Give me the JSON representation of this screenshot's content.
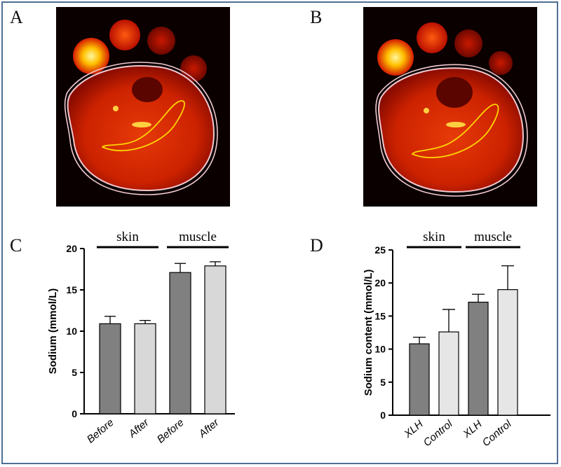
{
  "panels": {
    "A": {
      "letter": "A"
    },
    "B": {
      "letter": "B"
    },
    "C": {
      "letter": "C"
    },
    "D": {
      "letter": "D"
    }
  },
  "chart_data": [
    {
      "id": "C",
      "type": "bar",
      "categories": [
        "Before",
        "After",
        "Before",
        "After"
      ],
      "values": [
        10.9,
        10.9,
        17.1,
        17.9
      ],
      "errors": [
        0.9,
        0.4,
        1.1,
        0.5
      ],
      "bar_colors": [
        "#808080",
        "#d8d8d8",
        "#808080",
        "#d8d8d8"
      ],
      "ylabel": "Sodium (mmol/L)",
      "ylim": [
        0,
        20
      ],
      "yticks": [
        "0",
        "5",
        "10",
        "15",
        "20"
      ],
      "groups": [
        {
          "label": "skin",
          "span": [
            0,
            1
          ]
        },
        {
          "label": "muscle",
          "span": [
            2,
            3
          ]
        }
      ]
    },
    {
      "id": "D",
      "type": "bar",
      "categories": [
        "XLH",
        "Control",
        "XLH",
        "Control"
      ],
      "values": [
        10.8,
        12.6,
        17.1,
        19.0
      ],
      "errors": [
        1.0,
        3.4,
        1.2,
        3.6
      ],
      "bar_colors": [
        "#808080",
        "#e6e6e6",
        "#808080",
        "#e6e6e6"
      ],
      "ylabel": "Sodium content (mmol/L)",
      "ylim": [
        0,
        25
      ],
      "yticks": [
        "0",
        "5",
        "10",
        "15",
        "20",
        "25"
      ],
      "groups": [
        {
          "label": "skin",
          "span": [
            0,
            1
          ]
        },
        {
          "label": "muscle",
          "span": [
            2,
            3
          ]
        }
      ]
    }
  ]
}
